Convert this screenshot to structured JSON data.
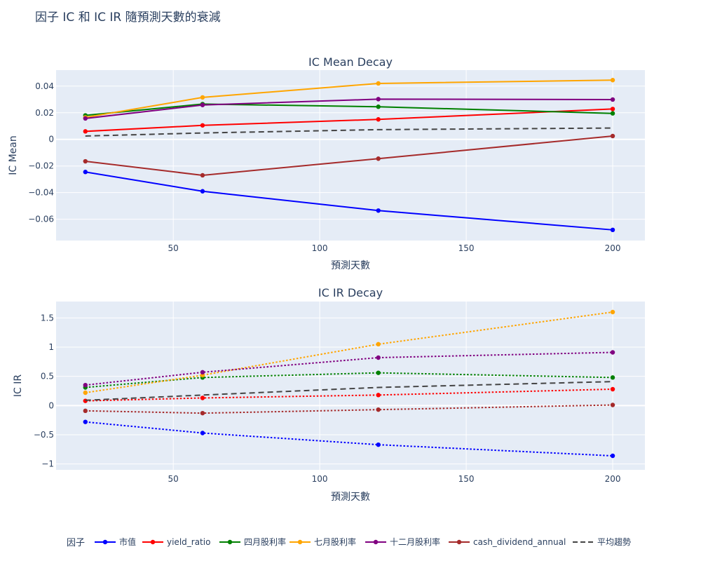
{
  "title": "因子 IC 和 IC IR 隨預測天數的衰減",
  "legend_title": "因子",
  "colors": {
    "plot_bg": "#e5ecf6",
    "市值": "#0000ff",
    "yield_ratio": "#ff0000",
    "四月股利率": "#008000",
    "七月股利率": "#ffa500",
    "十二月股利率": "#800080",
    "cash_dividend_annual": "#a52a2a",
    "平均趨勢": "#444444"
  },
  "chart_data": [
    {
      "type": "line",
      "title": "IC Mean Decay",
      "xlabel": "預測天數",
      "ylabel": "IC Mean",
      "x": [
        20,
        60,
        120,
        200
      ],
      "xlim": [
        10,
        211
      ],
      "ylim": [
        -0.076,
        0.052
      ],
      "xticks": [
        50,
        100,
        150,
        200
      ],
      "xtick_labels": [
        "50",
        "100",
        "150",
        "200"
      ],
      "yticks": [
        0.04,
        0.02,
        0,
        -0.02,
        -0.04,
        -0.06
      ],
      "ytick_labels": [
        "0.04",
        "0.02",
        "0",
        "−0.02",
        "−0.04",
        "−0.06"
      ],
      "grid": true,
      "line_style": "solid",
      "series": [
        {
          "name": "市值",
          "values": [
            -0.0245,
            -0.039,
            -0.0535,
            -0.068
          ]
        },
        {
          "name": "yield_ratio",
          "values": [
            0.006,
            0.0105,
            0.015,
            0.0228
          ]
        },
        {
          "name": "四月股利率",
          "values": [
            0.018,
            0.0265,
            0.0245,
            0.0195
          ]
        },
        {
          "name": "七月股利率",
          "values": [
            0.0165,
            0.0315,
            0.042,
            0.0445
          ]
        },
        {
          "name": "十二月股利率",
          "values": [
            0.0157,
            0.0258,
            0.0302,
            0.0299
          ]
        },
        {
          "name": "cash_dividend_annual",
          "values": [
            -0.0165,
            -0.027,
            -0.0145,
            0.0025
          ]
        },
        {
          "name": "平均趨勢",
          "values": [
            0.0025,
            0.0048,
            0.0073,
            0.0085
          ],
          "dashed": true,
          "markers": false
        }
      ]
    },
    {
      "type": "line",
      "title": "IC IR Decay",
      "xlabel": "預測天數",
      "ylabel": "IC IR",
      "x": [
        20,
        60,
        120,
        200
      ],
      "xlim": [
        10,
        211
      ],
      "ylim": [
        -1.1,
        1.78
      ],
      "xticks": [
        50,
        100,
        150,
        200
      ],
      "xtick_labels": [
        "50",
        "100",
        "150",
        "200"
      ],
      "yticks": [
        1.5,
        1,
        0.5,
        0,
        -0.5,
        -1
      ],
      "ytick_labels": [
        "1.5",
        "1",
        "0.5",
        "0",
        "−0.5",
        "−1"
      ],
      "grid": true,
      "line_style": "dotted",
      "series": [
        {
          "name": "市值",
          "values": [
            -0.28,
            -0.47,
            -0.67,
            -0.86
          ]
        },
        {
          "name": "yield_ratio",
          "values": [
            0.08,
            0.13,
            0.18,
            0.28
          ]
        },
        {
          "name": "四月股利率",
          "values": [
            0.31,
            0.48,
            0.56,
            0.48
          ]
        },
        {
          "name": "七月股利率",
          "values": [
            0.22,
            0.52,
            1.05,
            1.6
          ]
        },
        {
          "name": "十二月股利率",
          "values": [
            0.35,
            0.57,
            0.82,
            0.91
          ]
        },
        {
          "name": "cash_dividend_annual",
          "values": [
            -0.09,
            -0.13,
            -0.07,
            0.01
          ]
        },
        {
          "name": "平均趨勢",
          "values": [
            0.09,
            0.18,
            0.31,
            0.41
          ],
          "dashed": true,
          "markers": false
        }
      ]
    }
  ],
  "legend": {
    "position": "bottom",
    "items": [
      "市值",
      "yield_ratio",
      "四月股利率",
      "七月股利率",
      "十二月股利率",
      "cash_dividend_annual",
      "平均趨勢"
    ]
  }
}
